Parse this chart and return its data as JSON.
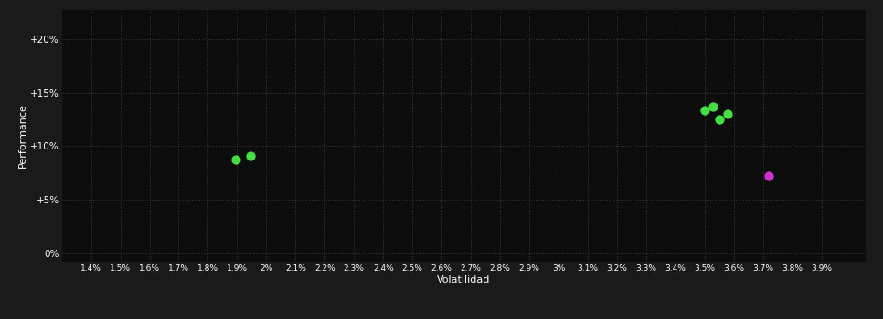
{
  "background_color": "#1a1a1a",
  "plot_bg_color": "#0d0d0d",
  "grid_color": "#3a3a3a",
  "text_color": "#ffffff",
  "xlabel": "Volatilidad",
  "ylabel": "Performance",
  "xlim": [
    0.013,
    0.0405
  ],
  "ylim": [
    -0.008,
    0.228
  ],
  "xticks": [
    0.014,
    0.015,
    0.016,
    0.017,
    0.018,
    0.019,
    0.02,
    0.021,
    0.022,
    0.023,
    0.024,
    0.025,
    0.026,
    0.027,
    0.028,
    0.029,
    0.03,
    0.031,
    0.032,
    0.033,
    0.034,
    0.035,
    0.036,
    0.037,
    0.038,
    0.039
  ],
  "xtick_labels": [
    "1.4%",
    "1.5%",
    "1.6%",
    "1.7%",
    "1.8%",
    "1.9%",
    "2%",
    "2.1%",
    "2.2%",
    "2.3%",
    "2.4%",
    "2.5%",
    "2.6%",
    "2.7%",
    "2.8%",
    "2.9%",
    "3%",
    "3.1%",
    "3.2%",
    "3.3%",
    "3.4%",
    "3.5%",
    "3.6%",
    "3.7%",
    "3.8%",
    "3.9%"
  ],
  "yticks": [
    0.0,
    0.05,
    0.1,
    0.15,
    0.2
  ],
  "ytick_labels": [
    "0%",
    "+5%",
    "+10%",
    "+15%",
    "+20%"
  ],
  "green_points": [
    [
      0.01895,
      0.088
    ],
    [
      0.01945,
      0.091
    ],
    [
      0.035,
      0.134
    ],
    [
      0.0353,
      0.137
    ],
    [
      0.0358,
      0.13
    ],
    [
      0.0355,
      0.125
    ]
  ],
  "magenta_points": [
    [
      0.0372,
      0.072
    ]
  ],
  "green_color": "#44dd44",
  "magenta_color": "#cc33cc",
  "marker_size": 55
}
